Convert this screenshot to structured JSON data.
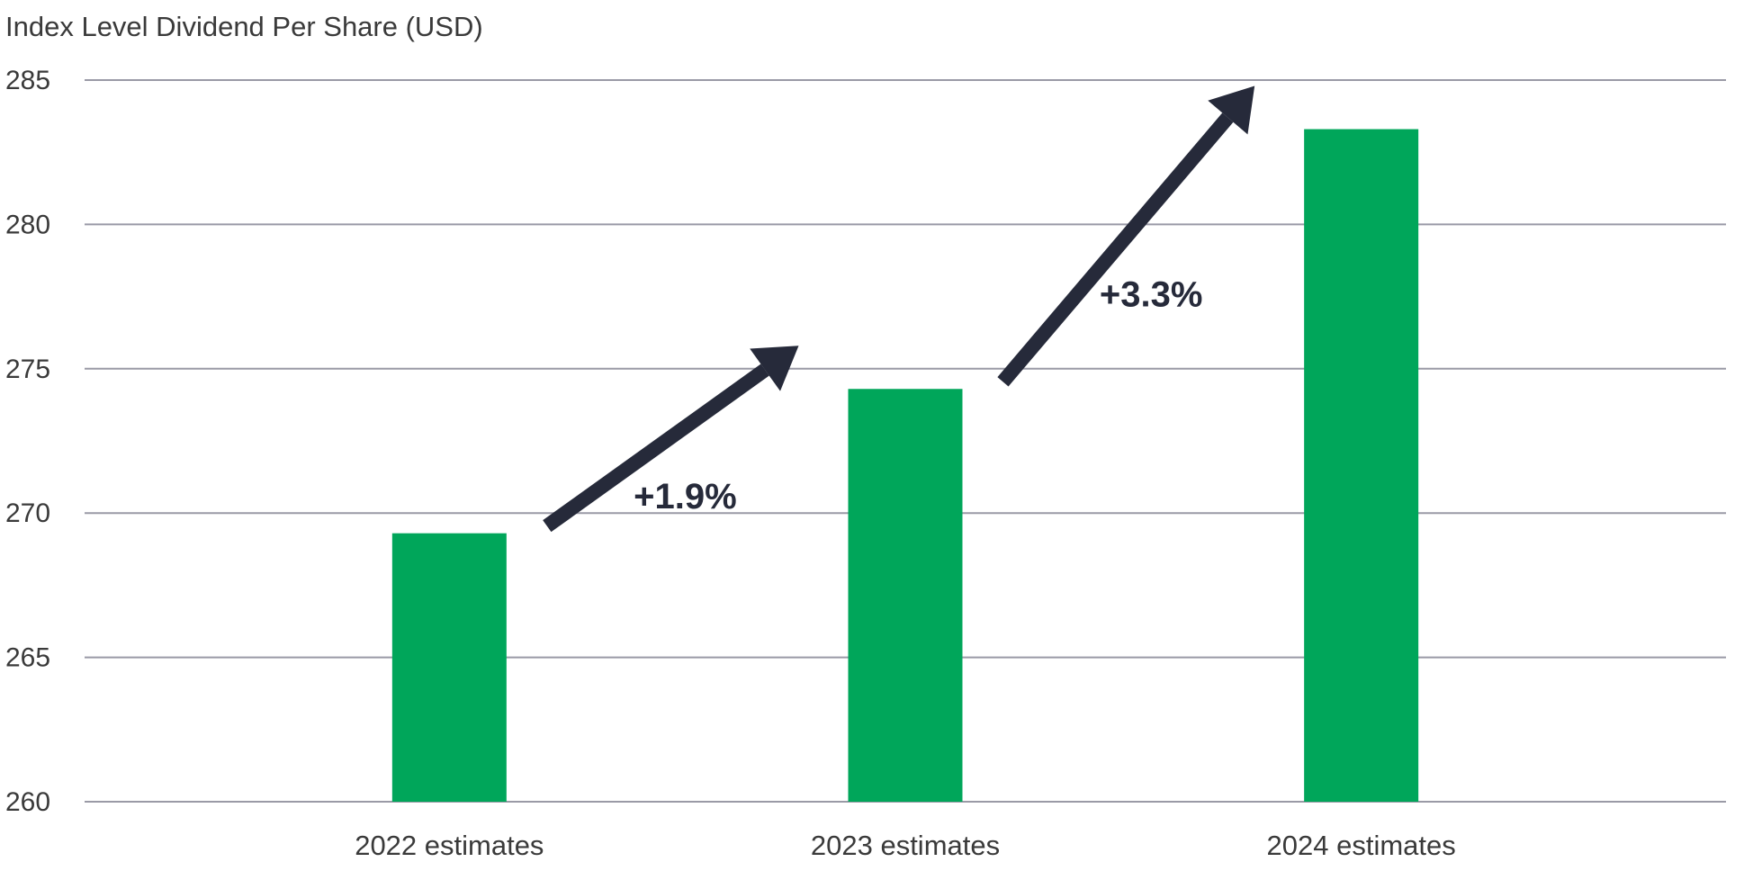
{
  "chart_data": {
    "type": "bar",
    "ylabel": "Index Level Dividend Per Share (USD)",
    "categories": [
      "2022 estimates",
      "2023 estimates",
      "2024 estimates"
    ],
    "values": [
      269.3,
      274.3,
      283.3
    ],
    "ylim": [
      260,
      285
    ],
    "yticks": [
      260,
      265,
      270,
      275,
      280,
      285
    ],
    "grid": true,
    "bar_color": "#00a65a",
    "annotations": [
      {
        "text": "+1.9%",
        "from": "2022 estimates",
        "to": "2023 estimates"
      },
      {
        "text": "+3.3%",
        "from": "2023 estimates",
        "to": "2024 estimates"
      }
    ],
    "annotation_color": "#262a3a"
  }
}
